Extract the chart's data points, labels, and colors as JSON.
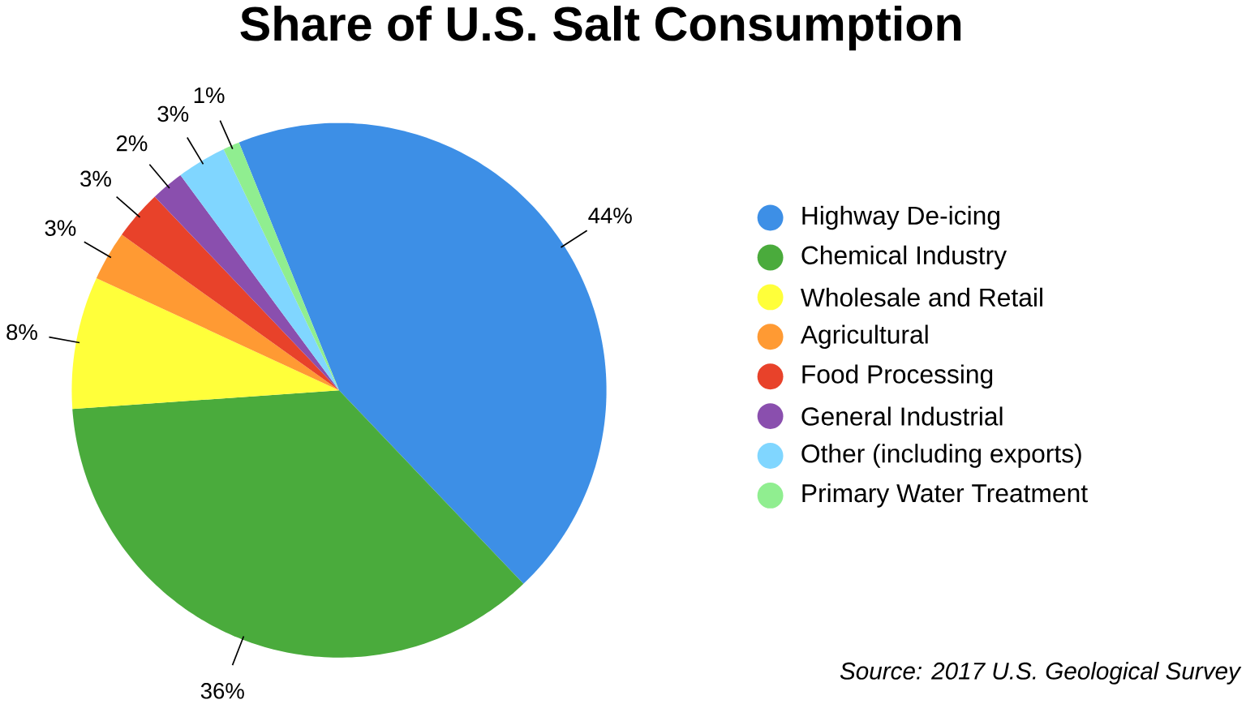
{
  "chart_data": {
    "type": "pie",
    "title": "Share of U.S. Salt Consumption",
    "categories": [
      "Highway De-icing",
      "Chemical Industry",
      "Wholesale and Retail",
      "Agricultural",
      "Food Processing",
      "General Industrial",
      "Other (including exports)",
      "Primary Water Treatment"
    ],
    "values": [
      44,
      36,
      8,
      3,
      3,
      2,
      3,
      1
    ],
    "colors": [
      "#3d8fe6",
      "#4aab3c",
      "#ffff3a",
      "#ff9a33",
      "#e8422a",
      "#8a4fae",
      "#80d6ff",
      "#90ee90"
    ],
    "value_labels": [
      "44%",
      "36%",
      "8%",
      "3%",
      "3%",
      "2%",
      "3%",
      "1%"
    ],
    "legend": "right",
    "annotations": [
      "Source: 2017 U.S. Geological Survey"
    ]
  }
}
